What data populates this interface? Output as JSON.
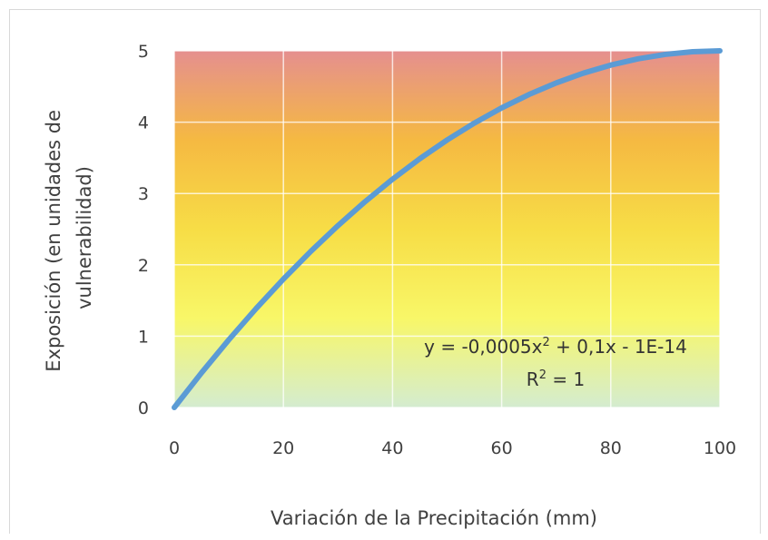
{
  "chart_data": {
    "type": "line",
    "title": "",
    "xlabel": "Variación de la Precipitación (mm)",
    "ylabel_lines": [
      "Exposición (en unidades de",
      "vulnerabilidad)"
    ],
    "xlim": [
      0,
      100
    ],
    "ylim": [
      0,
      5
    ],
    "x_ticks": [
      "0",
      "20",
      "40",
      "60",
      "80",
      "100"
    ],
    "y_ticks": [
      "0",
      "1",
      "2",
      "3",
      "4",
      "5"
    ],
    "grid": true,
    "legend": "none",
    "series": [
      {
        "color": "#5b9bd5",
        "x": [
          0,
          5,
          10,
          15,
          20,
          25,
          30,
          35,
          40,
          45,
          50,
          55,
          60,
          65,
          70,
          75,
          80,
          85,
          90,
          95,
          100
        ],
        "values": [
          0,
          0.4875,
          0.95,
          1.3875,
          1.8,
          2.1875,
          2.55,
          2.8875,
          3.2,
          3.4875,
          3.75,
          3.9875,
          4.2,
          4.3875,
          4.55,
          4.6875,
          4.8,
          4.8875,
          4.95,
          4.9875,
          5
        ]
      }
    ],
    "trendline_equation": {
      "prefix": "y = -0,0005x",
      "exponent": "2",
      "suffix": " + 0,1x - 1E-14"
    },
    "r_squared": {
      "prefix": "R",
      "exponent": "2",
      "suffix": " = 1"
    },
    "background_gradient": [
      "#e58f8f",
      "#f5b942",
      "#f7dd46",
      "#f8f768",
      "#d4ecd0"
    ]
  }
}
